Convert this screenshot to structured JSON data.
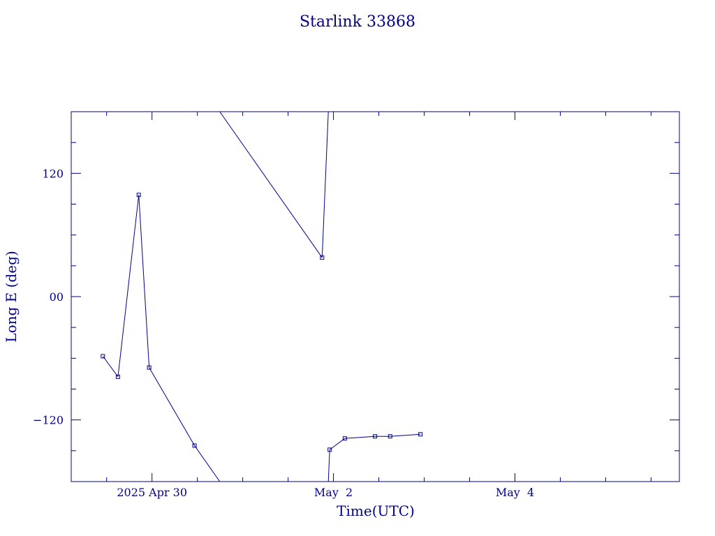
{
  "chart_data": {
    "type": "line",
    "title": "Starlink 33868",
    "xlabel": "Time(UTC)",
    "ylabel": "Long E (deg)",
    "x_ticks": [
      {
        "value": "2025-04-30T00:00",
        "label": "2025 Apr 30"
      },
      {
        "value": "2025-05-02T00:00",
        "label": "May  2"
      },
      {
        "value": "2025-05-04T00:00",
        "label": "May  4"
      }
    ],
    "y_ticks": [
      {
        "value": 120,
        "label": "120"
      },
      {
        "value": 0,
        "label": "00"
      },
      {
        "value": -120,
        "label": "−120"
      }
    ],
    "xlim": [
      "2025-04-29T02:38",
      "2025-05-05T19:30"
    ],
    "ylim": [
      -180,
      180
    ],
    "grid": false,
    "colors": {
      "axis": "#00008b",
      "line": "#00008b"
    },
    "series": [
      {
        "points": [
          {
            "x": "2025-04-29T11:00",
            "y": -58
          },
          {
            "x": "2025-04-29T15:00",
            "y": -78
          },
          {
            "x": "2025-04-29T20:30",
            "y": 99
          },
          {
            "x": "2025-04-29T23:15",
            "y": -69
          },
          {
            "x": "2025-04-30T11:15",
            "y": -145
          },
          {
            "x": "2025-05-01T21:00",
            "y": 38
          },
          {
            "x": "2025-05-01T23:00",
            "y": -149
          },
          {
            "x": "2025-05-02T03:00",
            "y": -138
          },
          {
            "x": "2025-05-02T11:00",
            "y": -136
          },
          {
            "x": "2025-05-02T15:00",
            "y": -136
          },
          {
            "x": "2025-05-02T23:00",
            "y": -134
          }
        ],
        "segments": [
          {
            "from": 0,
            "to": 1,
            "type": "direct"
          },
          {
            "from": 1,
            "to": 2,
            "type": "direct"
          },
          {
            "from": 2,
            "to": 3,
            "type": "direct"
          },
          {
            "from": 3,
            "to": 4,
            "type": "direct"
          },
          {
            "from": 4,
            "to": 5,
            "type": "wrap"
          },
          {
            "from": 5,
            "to": 6,
            "type": "wrap"
          },
          {
            "from": 6,
            "to": 7,
            "type": "direct"
          },
          {
            "from": 7,
            "to": 8,
            "type": "direct"
          },
          {
            "from": 8,
            "to": 9,
            "type": "direct"
          },
          {
            "from": 9,
            "to": 10,
            "type": "direct"
          }
        ]
      }
    ]
  }
}
